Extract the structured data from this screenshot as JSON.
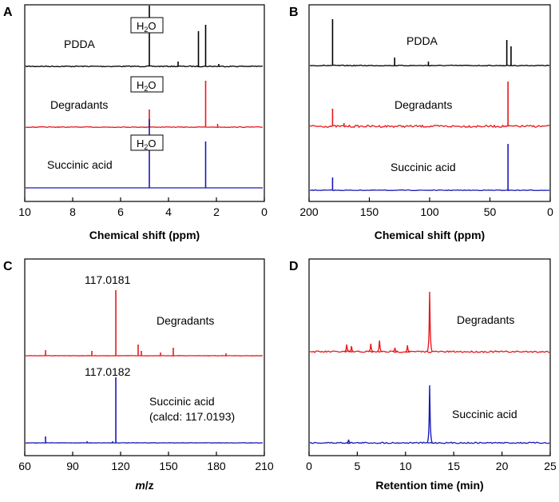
{
  "figure": {
    "panels": [
      "A",
      "B",
      "C",
      "D"
    ]
  },
  "chart_data": [
    {
      "panel": "A",
      "type": "line",
      "title": "",
      "xlabel": "Chemical shift (ppm)",
      "ylabel": "",
      "xlim": [
        10,
        0
      ],
      "x_reversed": true,
      "xticks": [
        10,
        8,
        6,
        4,
        2,
        0
      ],
      "xtick_labels": [
        "10",
        "8",
        "6",
        "4",
        "2",
        "0"
      ],
      "series": [
        {
          "name": "PDDA",
          "color": "#000000",
          "noise": 0.6,
          "peaks": [
            {
              "x": 4.8,
              "h": 76
            },
            {
              "x": 2.75,
              "h": 44
            },
            {
              "x": 2.45,
              "h": 52
            },
            {
              "x": 3.6,
              "h": 6
            },
            {
              "x": 1.9,
              "h": 3
            }
          ]
        },
        {
          "name": "Degradants",
          "color": "#e8191d",
          "noise": 0.4,
          "peaks": [
            {
              "x": 4.8,
              "h": 22
            },
            {
              "x": 2.45,
              "h": 58
            },
            {
              "x": 1.95,
              "h": 4
            },
            {
              "x": 8.6,
              "h": 1
            }
          ]
        },
        {
          "name": "Succinic acid",
          "color": "#1a1ab8",
          "noise": 0,
          "peaks": [
            {
              "x": 4.8,
              "h": 86
            },
            {
              "x": 2.45,
              "h": 58
            }
          ]
        }
      ],
      "annotations": [
        {
          "text": "H",
          "sub": "2",
          "tail": "O",
          "x": 4.8,
          "series": "PDDA"
        },
        {
          "text": "H",
          "sub": "2",
          "tail": "O",
          "x": 4.8,
          "series": "Degradants"
        },
        {
          "text": "H",
          "sub": "2",
          "tail": "O",
          "x": 4.8,
          "series": "Succinic acid"
        }
      ]
    },
    {
      "panel": "B",
      "type": "line",
      "title": "",
      "xlabel": "Chemical shift (ppm)",
      "ylabel": "",
      "xlim": [
        200,
        0
      ],
      "x_reversed": true,
      "xticks": [
        200,
        150,
        100,
        50,
        0
      ],
      "xtick_labels": [
        "200",
        "150",
        "100",
        "50",
        "0"
      ],
      "series": [
        {
          "name": "PDDA",
          "color": "#000000",
          "noise": 0.5,
          "peaks": [
            {
              "x": 180.5,
              "h": 58
            },
            {
              "x": 36,
              "h": 32
            },
            {
              "x": 32.5,
              "h": 24
            },
            {
              "x": 129,
              "h": 10
            },
            {
              "x": 101,
              "h": 5
            }
          ]
        },
        {
          "name": "Degradants",
          "color": "#e8191d",
          "noise": 1.3,
          "peaks": [
            {
              "x": 180.5,
              "h": 22
            },
            {
              "x": 35,
              "h": 56
            },
            {
              "x": 171,
              "h": 4
            }
          ]
        },
        {
          "name": "Succinic acid",
          "color": "#1a1ab8",
          "noise": 0.4,
          "peaks": [
            {
              "x": 180.5,
              "h": 16
            },
            {
              "x": 35,
              "h": 58
            }
          ]
        }
      ],
      "annotations": []
    },
    {
      "panel": "C",
      "type": "line",
      "title": "",
      "xlabel": "m/z",
      "ylabel": "",
      "xlim": [
        60,
        210
      ],
      "x_reversed": false,
      "xticks": [
        60,
        90,
        120,
        150,
        180,
        210
      ],
      "xtick_labels": [
        "60",
        "90",
        "120",
        "150",
        "180",
        "210"
      ],
      "series": [
        {
          "name": "Degradants",
          "color": "#e8191d",
          "noise": 0.2,
          "peaks": [
            {
              "x": 117.0181,
              "h": 82
            },
            {
              "x": 73,
              "h": 7
            },
            {
              "x": 102,
              "h": 6
            },
            {
              "x": 131,
              "h": 14
            },
            {
              "x": 133,
              "h": 6
            },
            {
              "x": 145,
              "h": 4
            },
            {
              "x": 153,
              "h": 10
            },
            {
              "x": 186,
              "h": 3
            }
          ]
        },
        {
          "name": "Succinic acid",
          "color": "#1a1ab8",
          "noise": 0.2,
          "peaks": [
            {
              "x": 117.0182,
              "h": 82
            },
            {
              "x": 73,
              "h": 8
            },
            {
              "x": 99,
              "h": 2
            },
            {
              "x": 115,
              "h": 2
            }
          ]
        }
      ],
      "annotations": [
        {
          "text": "117.0181",
          "x": 117.0181,
          "series": "Degradants"
        },
        {
          "text": "117.0182",
          "x": 117.0182,
          "series": "Succinic acid"
        }
      ],
      "extra_labels": [
        {
          "text": "(calcd: 117.0193)",
          "series": "Succinic acid"
        }
      ]
    },
    {
      "panel": "D",
      "type": "line",
      "title": "",
      "xlabel": "Retention time (min)",
      "ylabel": "",
      "xlim": [
        0,
        25
      ],
      "x_reversed": false,
      "xticks": [
        0,
        5,
        10,
        15,
        20,
        25
      ],
      "xtick_labels": [
        "0",
        "5",
        "10",
        "15",
        "20",
        "25"
      ],
      "series": [
        {
          "name": "Degradants",
          "color": "#e8191d",
          "noise": 1.0,
          "peaks": [
            {
              "x": 12.5,
              "h": 75,
              "w": 0.12
            },
            {
              "x": 3.9,
              "h": 9,
              "w": 0.12
            },
            {
              "x": 4.4,
              "h": 7,
              "w": 0.1
            },
            {
              "x": 6.4,
              "h": 10,
              "w": 0.12
            },
            {
              "x": 7.3,
              "h": 14,
              "w": 0.12
            },
            {
              "x": 8.9,
              "h": 5,
              "w": 0.1
            },
            {
              "x": 10.2,
              "h": 8,
              "w": 0.1
            }
          ]
        },
        {
          "name": "Succinic acid",
          "color": "#1a1ab8",
          "noise": 0.8,
          "peaks": [
            {
              "x": 12.5,
              "h": 72,
              "w": 0.12
            },
            {
              "x": 4.1,
              "h": 4,
              "w": 0.1
            }
          ]
        }
      ],
      "annotations": []
    }
  ]
}
